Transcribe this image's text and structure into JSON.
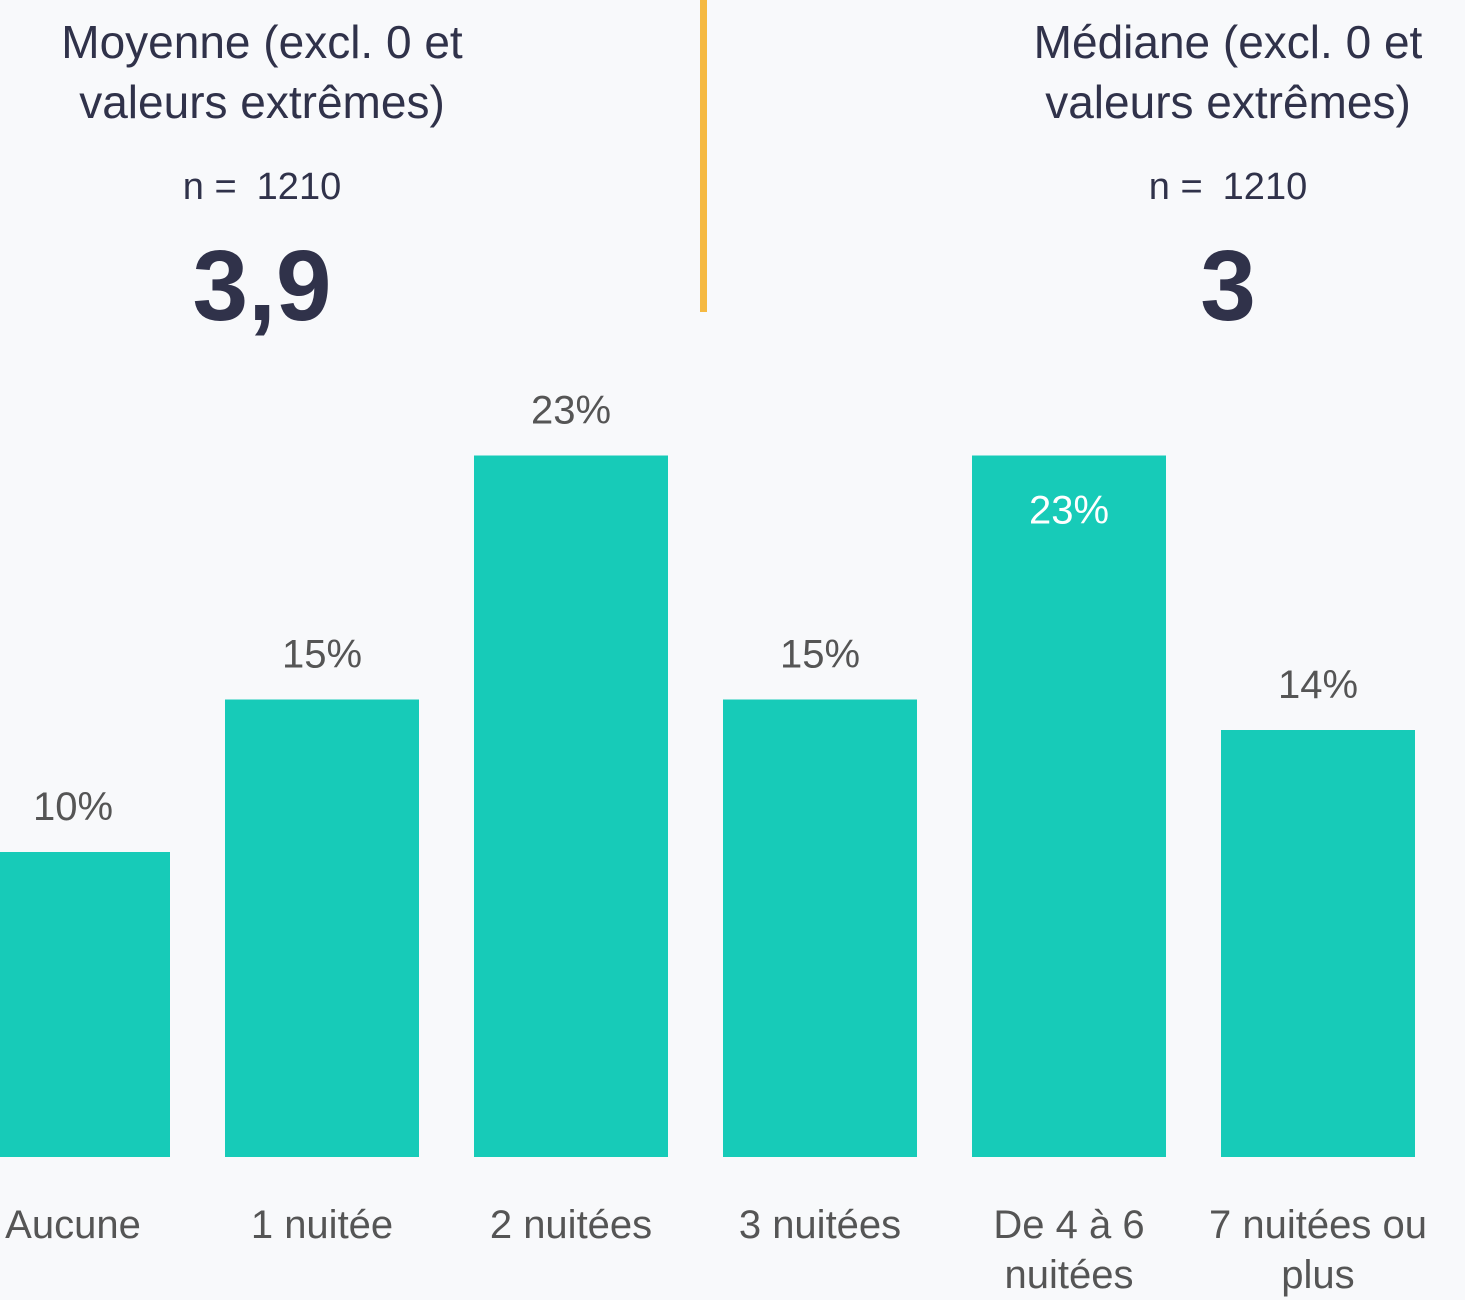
{
  "stats": [
    {
      "title": "Moyenne (excl. 0 et valeurs extrêmes)",
      "n_label": "n =",
      "n": 1210,
      "value": "3,9"
    },
    {
      "title": "Médiane (excl. 0 et valeurs extrêmes)",
      "n_label": "n =",
      "n": 1210,
      "value": "3"
    }
  ],
  "chart_data": {
    "type": "bar",
    "categories": [
      "Aucune",
      "1 nuitée",
      "2 nuitées",
      "3 nuitées",
      "De 4 à 6 nuitées",
      "7 nuitées ou plus"
    ],
    "values": [
      10,
      15,
      23,
      15,
      23,
      14
    ],
    "value_labels": [
      "10%",
      "15%",
      "23%",
      "15%",
      "23%",
      "14%"
    ],
    "value_label_colors": [
      "#555555",
      "#555555",
      "#555555",
      "#555555",
      "#ffffff",
      "#555555"
    ],
    "color": "#17cbb8",
    "ylim": [
      0,
      24
    ]
  }
}
